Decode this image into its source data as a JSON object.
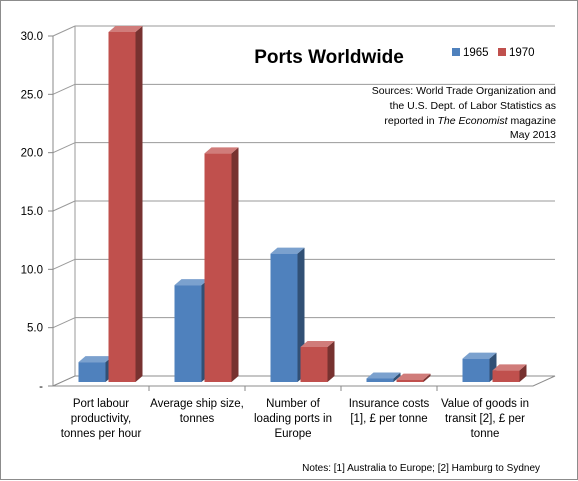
{
  "chart_data": {
    "type": "bar",
    "title": "Ports Worldwide",
    "categories": [
      "Port labour productivity, tonnes per hour",
      "Average ship size, tonnes",
      "Number of loading ports in Europe",
      "Insurance costs [1], £ per tonne",
      "Value of goods in transit [2], £ per tonne"
    ],
    "category_lines": [
      [
        "Port labour",
        "productivity,",
        "tonnes per hour"
      ],
      [
        "Average ship size,",
        "tonnes"
      ],
      [
        "Number of",
        "loading ports in",
        "Europe"
      ],
      [
        "Insurance costs",
        "[1], £ per tonne"
      ],
      [
        "Value of goods in",
        "transit [2],  £  per",
        "tonne"
      ]
    ],
    "series": [
      {
        "name": "1965",
        "color": "#4f81bd",
        "values": [
          1.7,
          8.3,
          11.0,
          0.3,
          2.0
        ]
      },
      {
        "name": "1970",
        "color": "#c0504d",
        "values": [
          30.0,
          19.6,
          3.0,
          0.2,
          1.0
        ]
      }
    ],
    "y_ticks": [
      "-",
      "5.0",
      "10.0",
      "15.0",
      "20.0",
      "25.0",
      "30.0"
    ],
    "ylim": [
      0,
      30
    ],
    "grid": true,
    "legend_position": "top-right",
    "sources": {
      "line1": "Sources: World Trade Organization and",
      "line2": "the U.S. Dept. of Labor Statistics as",
      "line3_prefix": "reported in ",
      "line3_italic": "The Economist",
      "line3_suffix": " magazine",
      "line4": "May 2013"
    },
    "notes": "Notes: [1] Australia to Europe; [2] Hamburg to Sydney"
  }
}
